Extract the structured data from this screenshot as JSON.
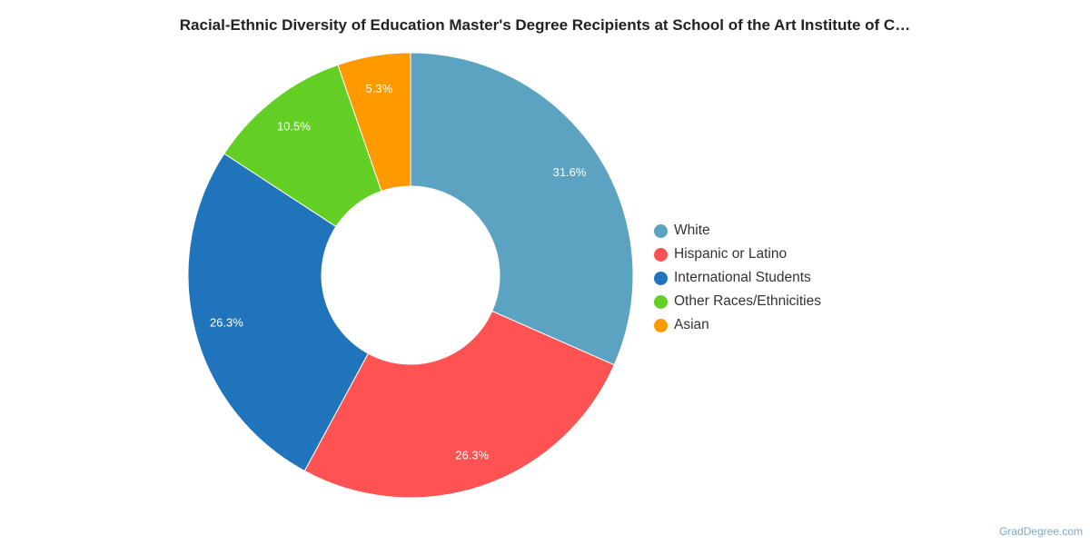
{
  "chart_data": {
    "type": "pie",
    "donut": true,
    "title": "Racial-Ethnic Diversity of Education Master's Degree Recipients at School of the Art Institute of C…",
    "categories": [
      "White",
      "Hispanic or Latino",
      "International Students",
      "Other Races/Ethnicities",
      "Asian"
    ],
    "values": [
      31.6,
      26.3,
      26.3,
      10.5,
      5.3
    ],
    "labels": [
      "31.6%",
      "26.3%",
      "26.3%",
      "10.5%",
      "5.3%"
    ],
    "colors": [
      "#5ba3c0",
      "#ff5252",
      "#1f74bb",
      "#63cf25",
      "#ff9900"
    ],
    "legend_position": "right"
  },
  "credit": "GradDegree.com"
}
